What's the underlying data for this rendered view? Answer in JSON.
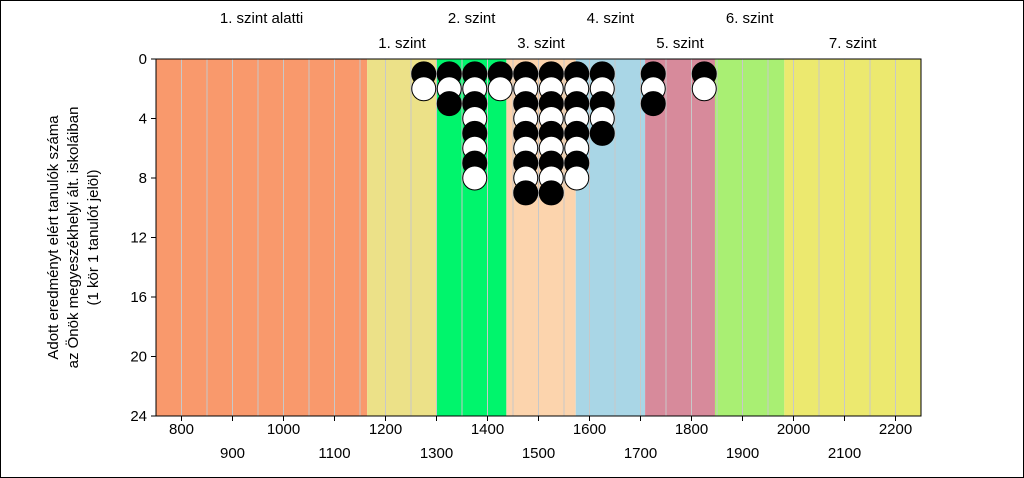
{
  "chart_data": {
    "type": "scatter",
    "title": "",
    "ylabel": [
      "Adott eredményt elért tanulók száma",
      "az Önök megyeszékhelyi ált. iskoláiban",
      "(1 kör 1 tanulót jelöl)"
    ],
    "xlim": [
      750,
      2250
    ],
    "ylim": [
      0,
      24
    ],
    "y_inverted": true,
    "y_ticks": [
      0,
      4,
      8,
      12,
      16,
      20,
      24
    ],
    "x_ticks_upper_row": [
      800,
      1000,
      1200,
      1400,
      1600,
      1800,
      2000,
      2200
    ],
    "x_ticks_lower_row": [
      900,
      1100,
      1300,
      1500,
      1700,
      1900,
      2100
    ],
    "minor_grid_step": 50,
    "levels": [
      {
        "label": "1. szint alatti",
        "from": 750,
        "to": 1164,
        "color": "#f9996c",
        "label_row": "top"
      },
      {
        "label": "1. szint",
        "from": 1164,
        "to": 1301,
        "color": "#ece188",
        "label_row": "bottom"
      },
      {
        "label": "2. szint",
        "from": 1301,
        "to": 1437,
        "color": "#00f56c",
        "label_row": "top"
      },
      {
        "label": "3. szint",
        "from": 1437,
        "to": 1573,
        "color": "#fcd4ad",
        "label_row": "bottom"
      },
      {
        "label": "4. szint",
        "from": 1573,
        "to": 1709,
        "color": "#a9d6e6",
        "label_row": "top"
      },
      {
        "label": "5. szint",
        "from": 1709,
        "to": 1846,
        "color": "#d78a9b",
        "label_row": "bottom"
      },
      {
        "label": "6. szint",
        "from": 1846,
        "to": 1982,
        "color": "#a9ef73",
        "label_row": "top"
      },
      {
        "label": "7. szint",
        "from": 1982,
        "to": 2250,
        "color": "#ece96f",
        "label_row": "bottom"
      }
    ],
    "columns": [
      {
        "x": 1275,
        "circles": [
          "black",
          "white"
        ]
      },
      {
        "x": 1325,
        "circles": [
          "black",
          "white",
          "black"
        ]
      },
      {
        "x": 1375,
        "circles": [
          "black",
          "white",
          "black",
          "white",
          "black",
          "white",
          "black",
          "white"
        ]
      },
      {
        "x": 1425,
        "circles": [
          "black",
          "white"
        ]
      },
      {
        "x": 1475,
        "circles": [
          "black",
          "white",
          "black",
          "white",
          "black",
          "white",
          "black",
          "white",
          "black"
        ]
      },
      {
        "x": 1525,
        "circles": [
          "black",
          "white",
          "black",
          "white",
          "black",
          "white",
          "black",
          "white",
          "black"
        ]
      },
      {
        "x": 1575,
        "circles": [
          "black",
          "white",
          "black",
          "white",
          "black",
          "white",
          "black",
          "white"
        ]
      },
      {
        "x": 1625,
        "circles": [
          "black",
          "white",
          "black",
          "white",
          "black"
        ]
      },
      {
        "x": 1725,
        "circles": [
          "black",
          "white",
          "black"
        ]
      },
      {
        "x": 1825,
        "circles": [
          "black",
          "white"
        ]
      }
    ],
    "colors": {
      "black_circle": "#000000",
      "white_circle": "#ffffff",
      "grid": "#c8c8c8"
    }
  }
}
